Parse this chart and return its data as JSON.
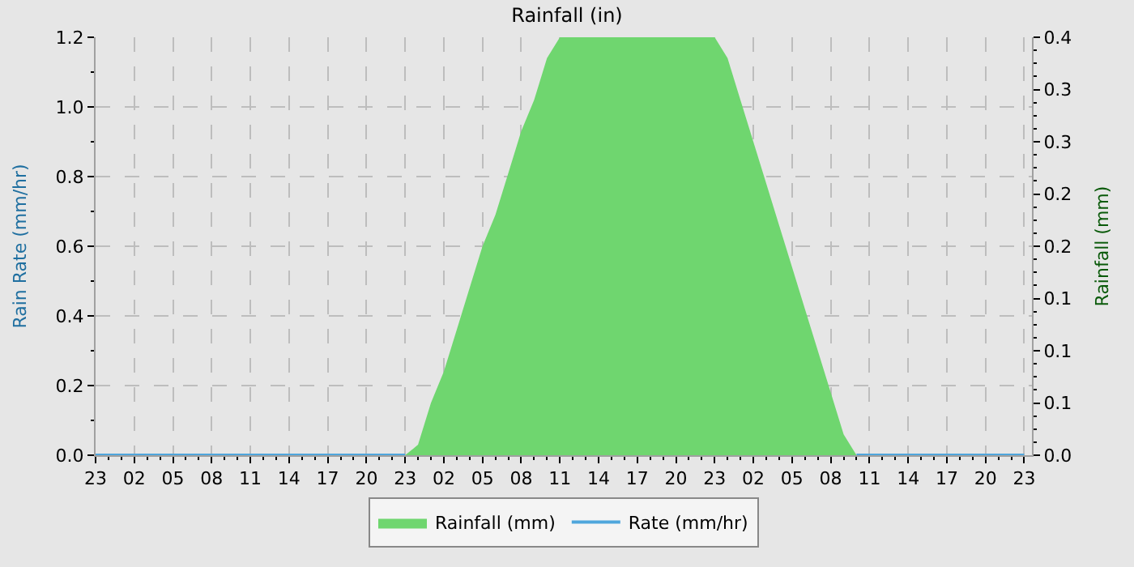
{
  "chart_data": {
    "type": "area",
    "title": "Rainfall (in)",
    "ylabel": "Rain Rate (mm/hr)",
    "y2label": "Rainfall (mm)",
    "categories": [
      "23",
      null,
      null,
      "02",
      null,
      null,
      "05",
      null,
      null,
      "08",
      null,
      null,
      "11",
      null,
      null,
      "14",
      null,
      null,
      "17",
      null,
      null,
      "20",
      null,
      null,
      "23",
      null,
      null,
      "02",
      null,
      null,
      "05",
      null,
      null,
      "08",
      null,
      null,
      "11",
      null,
      null,
      "14",
      null,
      null,
      "17",
      null,
      null,
      "20",
      null,
      null,
      "23",
      null,
      null,
      "02",
      null,
      null,
      "05",
      null,
      null,
      "08",
      null,
      null,
      "11",
      null,
      null,
      "14",
      null,
      null,
      "17",
      null,
      null,
      "20",
      null,
      null,
      "23"
    ],
    "ylim": [
      0,
      1.2
    ],
    "yticks": [
      {
        "value": 0,
        "label": "0.0"
      },
      0.2,
      0.4,
      0.6,
      0.8,
      {
        "value": 1,
        "label": "1.0"
      },
      1.2
    ],
    "y2lim": [
      0,
      0.4
    ],
    "y2ticks": [
      {
        "value": 0,
        "label": "0.0"
      },
      {
        "value": 0.05,
        "label": "0.1"
      },
      0.1,
      {
        "value": 0.15,
        "label": "0.1"
      },
      0.2,
      {
        "value": 0.25,
        "label": "0.2"
      },
      0.3,
      {
        "value": 0.35,
        "label": "0.3"
      },
      0.4
    ],
    "grid": true,
    "legend": "bottom",
    "series": [
      {
        "name": "Rainfall (mm)",
        "axis": "y2",
        "color": "#6fd66f",
        "values": [
          0,
          0,
          0,
          0,
          0,
          0,
          0,
          0,
          0,
          0,
          0,
          0,
          0,
          0,
          0,
          0,
          0,
          0,
          0,
          0,
          0,
          0,
          0,
          0,
          0,
          0.01,
          0.05,
          0.08,
          0.12,
          0.16,
          0.2,
          0.23,
          0.27,
          0.31,
          0.34,
          0.38,
          0.4,
          0.4,
          0.4,
          0.4,
          0.4,
          0.4,
          0.4,
          0.4,
          0.4,
          0.4,
          0.4,
          0.4,
          0.4,
          0.38,
          0.34,
          0.3,
          0.26,
          0.22,
          0.18,
          0.14,
          0.1,
          0.06,
          0.02,
          0,
          0,
          0,
          0,
          0,
          0,
          0,
          0,
          0,
          0,
          0,
          0,
          0,
          0
        ]
      },
      {
        "name": "Rate (mm/hr)",
        "type": "line",
        "color": "#4fa6dc",
        "values": [
          0,
          0,
          0,
          0,
          0,
          0,
          0,
          0,
          0,
          0,
          0,
          0,
          0,
          0,
          0,
          0,
          0,
          0,
          0,
          0,
          0,
          0,
          0,
          0,
          0,
          null,
          null,
          null,
          null,
          null,
          null,
          null,
          null,
          null,
          null,
          null,
          null,
          null,
          null,
          null,
          null,
          null,
          null,
          null,
          null,
          null,
          null,
          null,
          null,
          null,
          null,
          null,
          null,
          null,
          null,
          null,
          null,
          null,
          null,
          0,
          0,
          0,
          0,
          0,
          0,
          0,
          0,
          0,
          0,
          0,
          0,
          0,
          0
        ]
      }
    ]
  }
}
